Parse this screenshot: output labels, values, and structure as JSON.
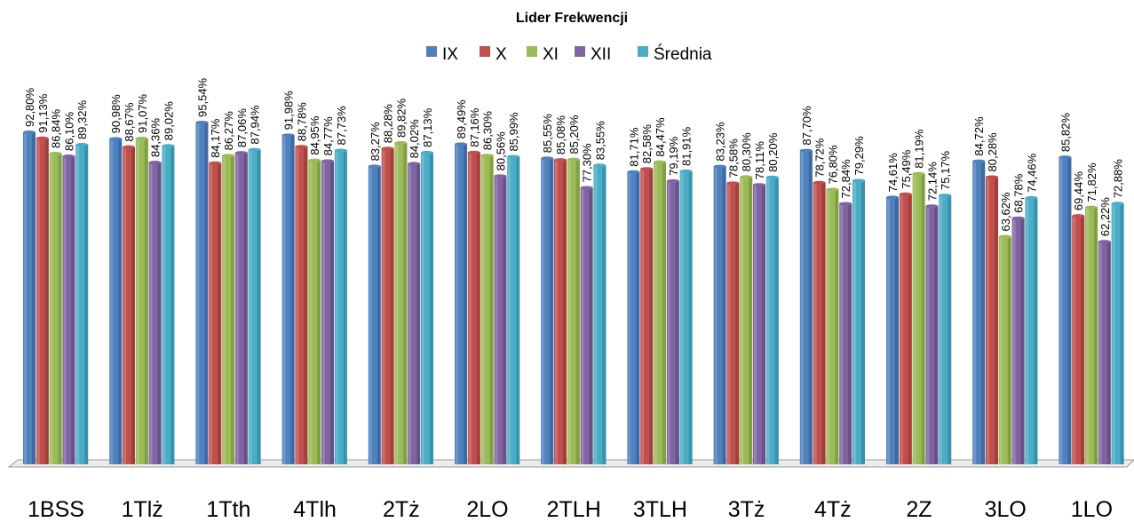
{
  "chart_data": {
    "type": "bar",
    "title": "Lider Frekwencji",
    "xlabel": "",
    "ylabel": "",
    "ylim": [
      0,
      100
    ],
    "legend_position": "top",
    "grid": false,
    "categories": [
      "1BSS",
      "1Tlż",
      "1Tth",
      "4Tlh",
      "2Tż",
      "2LO",
      "2TLH",
      "3TLH",
      "3Tż",
      "4Tż",
      "2Z",
      "3LO",
      "1LO"
    ],
    "series": [
      {
        "name": "IX",
        "color": "#4F81BD",
        "dark": "#2F5590",
        "values": [
          92.8,
          90.98,
          95.54,
          91.98,
          83.27,
          89.49,
          85.55,
          81.71,
          83.23,
          87.7,
          74.61,
          84.72,
          85.82
        ],
        "labels": [
          "92,80%",
          "90,98%",
          "95,54%",
          "91,98%",
          "83,27%",
          "89,49%",
          "85,55%",
          "81,71%",
          "83,23%",
          "87,70%",
          "74,61%",
          "84,72%",
          "85,82%"
        ]
      },
      {
        "name": "X",
        "color": "#C0504D",
        "dark": "#8C2F2C",
        "values": [
          91.13,
          88.67,
          84.17,
          88.78,
          88.28,
          87.16,
          85.08,
          82.58,
          78.58,
          78.72,
          75.49,
          80.28,
          69.44
        ],
        "labels": [
          "91,13%",
          "88,67%",
          "84,17%",
          "88,78%",
          "88,28%",
          "87,16%",
          "85,08%",
          "82,58%",
          "78,58%",
          "78,72%",
          "75,49%",
          "80,28%",
          "69,44%"
        ]
      },
      {
        "name": "XI",
        "color": "#9BBB59",
        "dark": "#6A8A2E",
        "values": [
          86.84,
          91.07,
          86.27,
          84.95,
          89.82,
          86.3,
          85.2,
          84.47,
          80.3,
          76.8,
          81.19,
          63.62,
          71.82
        ],
        "labels": [
          "86,84%",
          "91,07%",
          "86,27%",
          "84,95%",
          "89,82%",
          "86,30%",
          "85,20%",
          "84,47%",
          "80,30%",
          "76,80%",
          "81,19%",
          "63,62%",
          "71,82%"
        ]
      },
      {
        "name": "XII",
        "color": "#8064A2",
        "dark": "#553F75",
        "values": [
          86.1,
          84.36,
          87.06,
          84.77,
          84.02,
          80.56,
          77.3,
          79.19,
          78.11,
          72.84,
          72.14,
          68.78,
          62.22
        ],
        "labels": [
          "86,10%",
          "84,36%",
          "87,06%",
          "84,77%",
          "84,02%",
          "80,56%",
          "77,30%",
          "79,19%",
          "78,11%",
          "72,84%",
          "72,14%",
          "68,78%",
          "62,22%"
        ]
      },
      {
        "name": "Średnia",
        "color": "#4BACC6",
        "dark": "#267F97",
        "values": [
          89.32,
          89.02,
          87.94,
          87.73,
          87.13,
          85.99,
          83.55,
          81.91,
          80.2,
          79.29,
          75.17,
          74.46,
          72.88
        ],
        "labels": [
          "89,32%",
          "89,02%",
          "87,94%",
          "87,73%",
          "87,13%",
          "85,99%",
          "83,55%",
          "81,91%",
          "80,20%",
          "79,29%",
          "75,17%",
          "74,46%",
          "72,88%"
        ]
      }
    ]
  }
}
